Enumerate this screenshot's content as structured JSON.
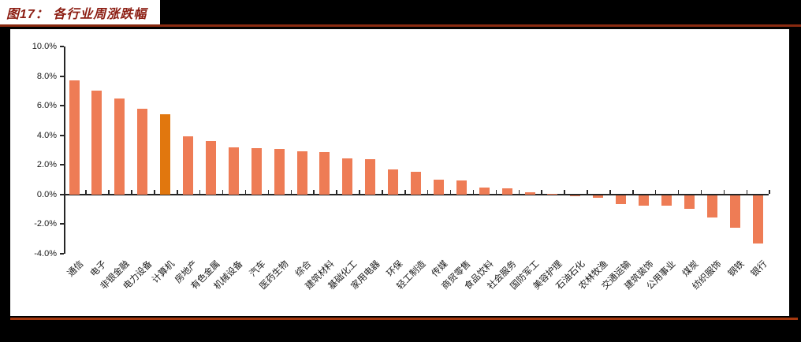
{
  "figure": {
    "title": "图17： 各行业周涨跌幅"
  },
  "colors": {
    "background": "#000000",
    "panel": "#FFFFFF",
    "title_text": "#8C1D12",
    "rule_top": "#8A2A10",
    "rule_bottom": "#A5380F",
    "axis": "#262626",
    "tick_label": "#1a1a1a"
  },
  "chart_data": {
    "type": "bar",
    "title": "各行业周涨跌幅",
    "xlabel": "",
    "ylabel": "",
    "unit": "%",
    "grid": false,
    "legend": null,
    "ylim": [
      -4.0,
      10.0
    ],
    "yticks": [
      10,
      8,
      6,
      4,
      2,
      0,
      -2,
      -4
    ],
    "ytick_labels": [
      "10.0%",
      "8.0%",
      "6.0%",
      "4.0%",
      "2.0%",
      "0.0%",
      "-2.0%",
      "-4.0%"
    ],
    "categories": [
      "通信",
      "电子",
      "非银金融",
      "电力设备",
      "计算机",
      "房地产",
      "有色金属",
      "机械设备",
      "汽车",
      "医药生物",
      "综合",
      "建筑材料",
      "基础化工",
      "家用电器",
      "环保",
      "轻工制造",
      "传媒",
      "商贸零售",
      "食品饮料",
      "社会服务",
      "国防军工",
      "美容护理",
      "石油石化",
      "农林牧渔",
      "交通运输",
      "建筑装饰",
      "公用事业",
      "煤炭",
      "纺织服饰",
      "钢铁",
      "银行"
    ],
    "values": [
      7.7,
      7.0,
      6.5,
      5.8,
      5.4,
      3.9,
      3.6,
      3.2,
      3.1,
      3.05,
      2.9,
      2.85,
      2.45,
      2.4,
      1.7,
      1.5,
      1.0,
      0.95,
      0.45,
      0.4,
      0.15,
      0.05,
      -0.08,
      -0.2,
      -0.6,
      -0.7,
      -0.7,
      -0.95,
      -1.5,
      -2.2,
      -3.3
    ],
    "bar_color": "#EE7C55",
    "highlight_color": "#E1770E",
    "highlight_index": 4,
    "highlight_category": "计算机"
  }
}
